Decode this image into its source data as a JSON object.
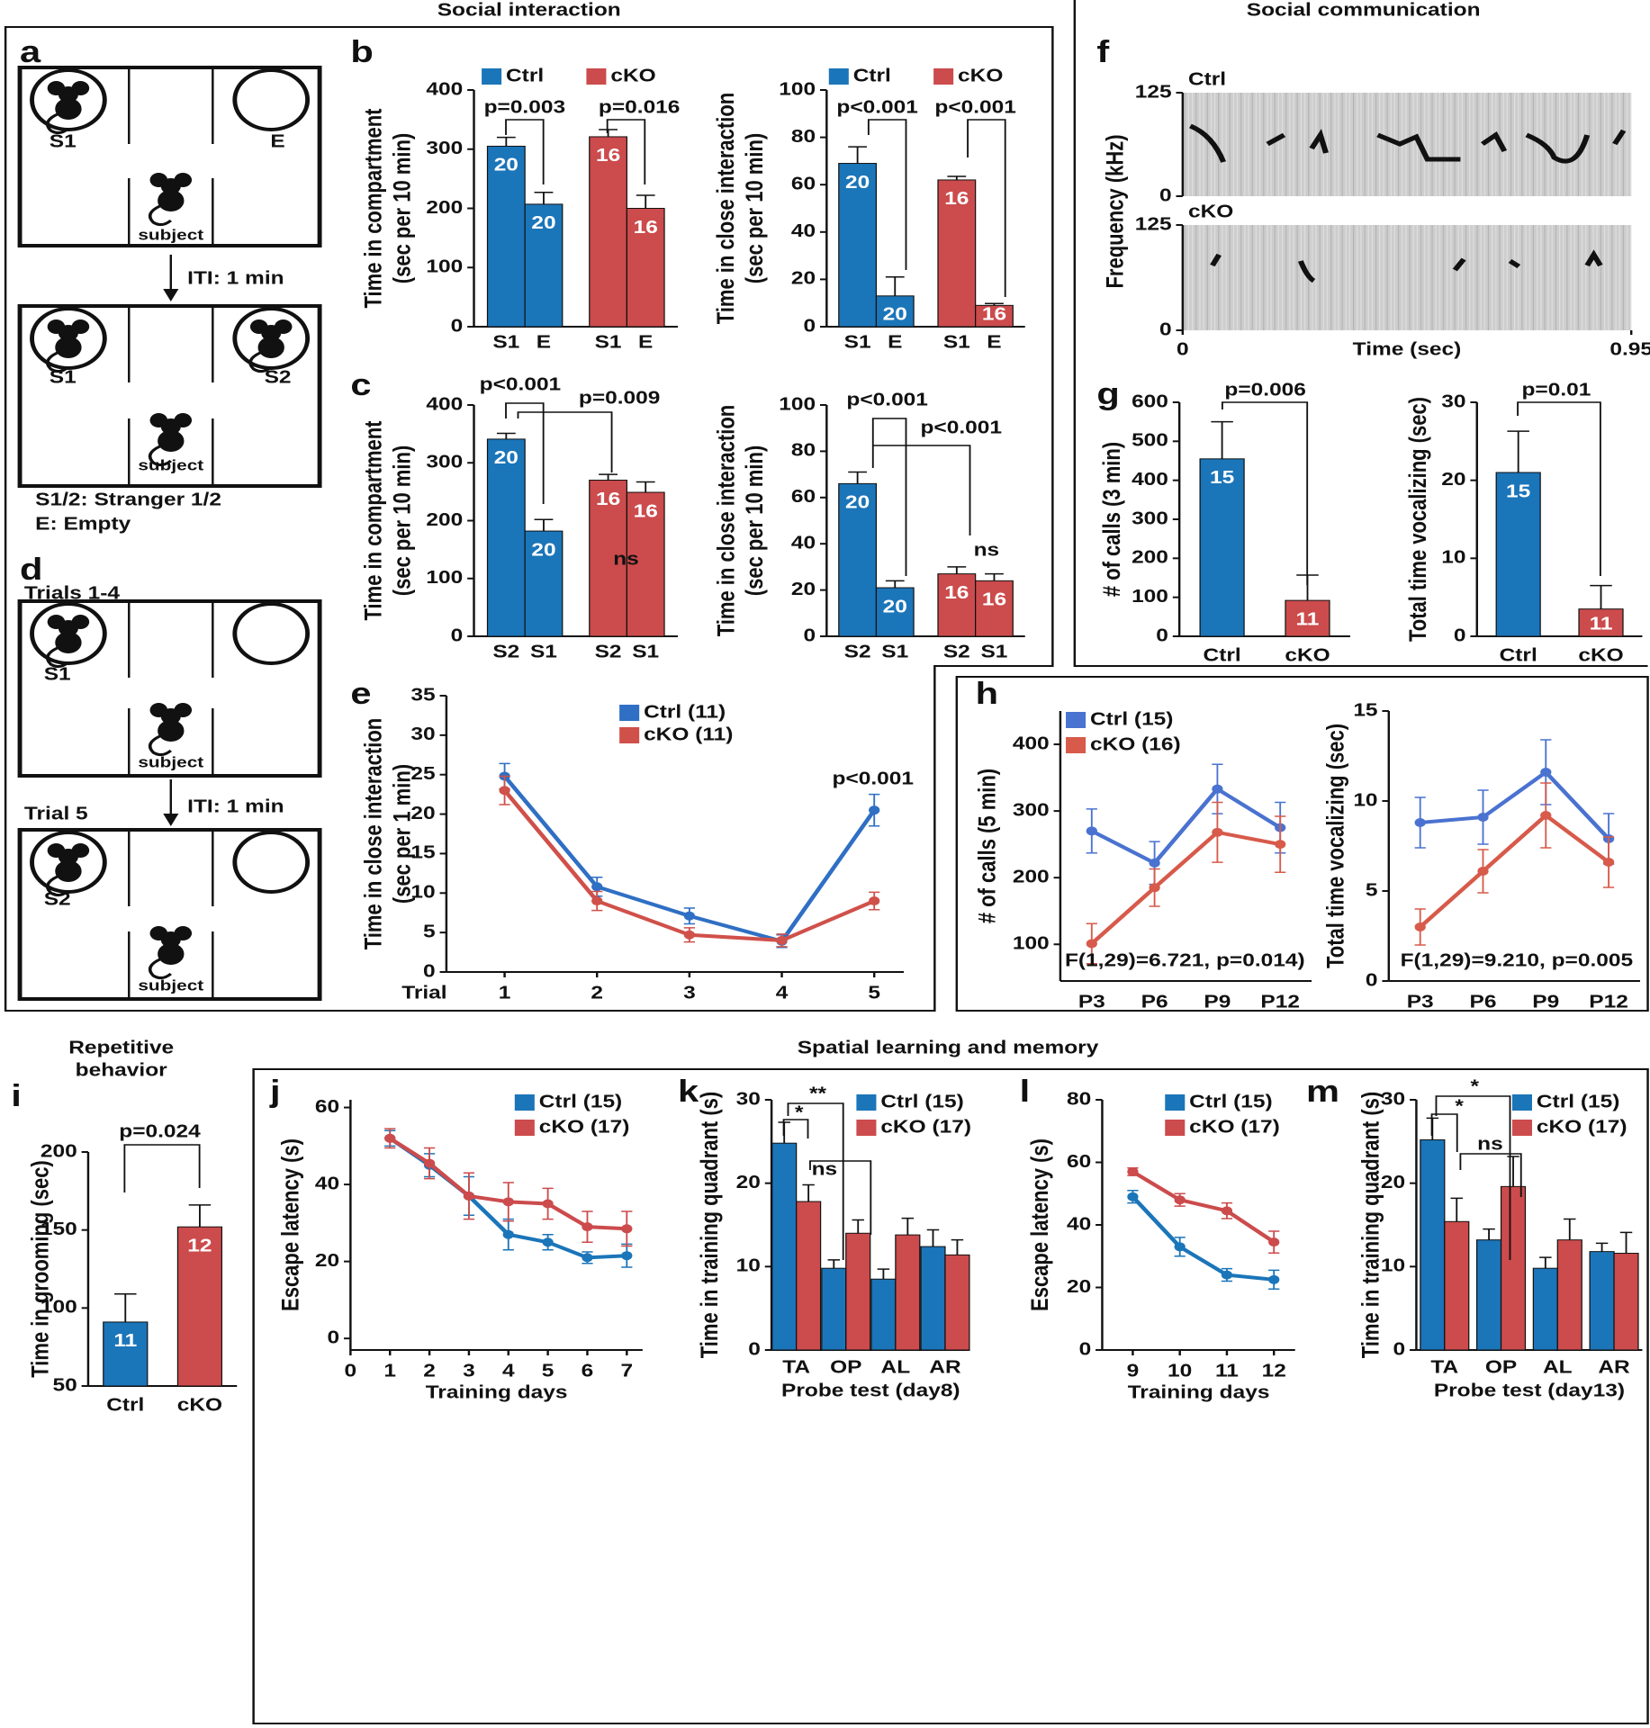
{
  "sections": [
    "Social interaction",
    "Social communication",
    [
      "Repetitive",
      "behavior"
    ],
    "Spatial learning and memory"
  ],
  "panel_labels": [
    "a",
    "b",
    "c",
    "d",
    "e",
    "f",
    "g",
    "h",
    "i",
    "j",
    "k",
    "l",
    "m"
  ],
  "diagram_a": {
    "top": [
      "S1",
      "E",
      "subject"
    ],
    "iti": "ITI: 1 min",
    "bottom": [
      "S1",
      "S2",
      "subject"
    ],
    "legend": [
      "S1/2: Stranger 1/2",
      "E: Empty"
    ]
  },
  "diagram_d": {
    "top_title": "Trials 1-4",
    "top": [
      "S1",
      "subject"
    ],
    "iti": "ITI: 1 min",
    "bottom_title": "Trial 5",
    "bottom": [
      "S2",
      "subject"
    ]
  },
  "chart_data": [
    {
      "type": "bar",
      "categories": [
        "S1",
        "E"
      ],
      "ylim": [
        0,
        400
      ],
      "yticks": [
        0,
        100,
        200,
        300,
        400
      ],
      "ylabel": [
        "Time in compartment",
        "(sec per 10 min)"
      ],
      "series": [
        {
          "name": "Ctrl",
          "color": "#1b75b9",
          "values": [
            305,
            207
          ],
          "errors": [
            15,
            20
          ],
          "n": [
            20,
            20
          ]
        },
        {
          "name": "cKO",
          "color": "#cc4b4c",
          "values": [
            321,
            200
          ],
          "errors": [
            12,
            22
          ],
          "n": [
            16,
            16
          ]
        }
      ],
      "annotations": [
        "p=0.003",
        "p=0.016"
      ]
    },
    {
      "type": "bar",
      "categories": [
        "S1",
        "E"
      ],
      "ylim": [
        0,
        100
      ],
      "yticks": [
        0,
        20,
        40,
        60,
        80,
        100
      ],
      "ylabel": [
        "Time in close interaction",
        "(sec per 10 min)"
      ],
      "series": [
        {
          "name": "Ctrl",
          "color": "#1b75b9",
          "values": [
            69,
            13
          ],
          "errors": [
            7,
            8
          ],
          "n": [
            20,
            20
          ]
        },
        {
          "name": "cKO",
          "color": "#cc4b4c",
          "values": [
            62,
            9
          ],
          "errors": [
            1.5,
            0.8
          ],
          "n": [
            16,
            16
          ]
        }
      ],
      "annotations": [
        "p<0.001",
        "p<0.001"
      ]
    },
    {
      "type": "bar",
      "categories": [
        "S2",
        "S1"
      ],
      "ylim": [
        0,
        400
      ],
      "yticks": [
        0,
        100,
        200,
        300,
        400
      ],
      "ylabel": [
        "Time in compartment",
        "(sec per 10 min)"
      ],
      "series": [
        {
          "color": "#1b75b9",
          "values": [
            341,
            182
          ],
          "errors": [
            10,
            20
          ],
          "n": [
            20,
            20
          ]
        },
        {
          "color": "#cc4b4c",
          "values": [
            270,
            249
          ],
          "errors": [
            10,
            18
          ],
          "n": [
            16,
            16
          ]
        }
      ],
      "annotations": [
        "p<0.001",
        "p=0.009",
        "ns"
      ]
    },
    {
      "type": "bar",
      "categories": [
        "S2",
        "S1"
      ],
      "ylim": [
        0,
        100
      ],
      "yticks": [
        0,
        20,
        40,
        60,
        80,
        100
      ],
      "ylabel": [
        "Time in close interaction",
        "(sec per 10 min)"
      ],
      "series": [
        {
          "color": "#1b75b9",
          "values": [
            66,
            21
          ],
          "errors": [
            5,
            3
          ],
          "n": [
            20,
            20
          ]
        },
        {
          "color": "#cc4b4c",
          "values": [
            27,
            24
          ],
          "errors": [
            3,
            3
          ],
          "n": [
            16,
            16
          ]
        }
      ],
      "annotations": [
        "p<0.001",
        "p<0.001",
        "ns"
      ]
    },
    {
      "type": "line",
      "x": [
        1,
        2,
        3,
        4,
        5
      ],
      "xlim": [
        0.37,
        5.32
      ],
      "xticks": [
        1,
        2,
        3,
        4,
        5
      ],
      "xlabel": "Trial",
      "ylim": [
        0,
        35
      ],
      "yticks": [
        0,
        5,
        10,
        15,
        20,
        25,
        30,
        35
      ],
      "ylabel": [
        "Time in close interaction",
        "(sec per 1 min)"
      ],
      "series": [
        {
          "name": "Ctrl (11)",
          "color": "#2f6fc4",
          "values": [
            24.8,
            10.8,
            7.1,
            3.9,
            20.5
          ],
          "errors": [
            1.6,
            1.2,
            1,
            0.8,
            2
          ]
        },
        {
          "name": "cKO (11)",
          "color": "#d0504a",
          "values": [
            23,
            9,
            4.7,
            4,
            9
          ],
          "errors": [
            1.8,
            1.2,
            0.9,
            0.8,
            1.1
          ]
        }
      ],
      "annotations": [
        "p<0.001"
      ]
    },
    {
      "type": "spectrogram",
      "panels": [
        "Ctrl",
        "cKO"
      ],
      "ylabel": "Frequency (kHz)",
      "xlabel": "Time (sec)",
      "ylim": [
        0,
        125
      ],
      "yticks": [
        0,
        125
      ],
      "xlim": [
        0,
        0.95
      ],
      "xticks": [
        0,
        0.95
      ]
    },
    {
      "type": "bar",
      "categories": [
        "Ctrl",
        "cKO"
      ],
      "colors": [
        "#1b75b9",
        "#cc4b4c"
      ],
      "values": [
        455,
        92
      ],
      "errors": [
        95,
        65
      ],
      "n": [
        15,
        11
      ],
      "ylim": [
        0,
        600
      ],
      "yticks": [
        0,
        100,
        200,
        300,
        400,
        500,
        600
      ],
      "ylabel": "# of calls (3 min)",
      "annotations": [
        "p=0.006"
      ]
    },
    {
      "type": "bar",
      "categories": [
        "Ctrl",
        "cKO"
      ],
      "colors": [
        "#1b75b9",
        "#cc4b4c"
      ],
      "values": [
        21,
        3.5
      ],
      "errors": [
        5.3,
        3
      ],
      "n": [
        15,
        11
      ],
      "ylim": [
        0,
        30
      ],
      "yticks": [
        0,
        10,
        20,
        30
      ],
      "ylabel": "Total time vocalizing (sec)",
      "annotations": [
        "p=0.01"
      ]
    },
    {
      "type": "line",
      "categories": [
        "P3",
        "P6",
        "P9",
        "P12"
      ],
      "ylim": [
        45,
        450
      ],
      "yticks": [
        100,
        200,
        300,
        400
      ],
      "ylabel": "# of calls (5 min)",
      "series": [
        {
          "name": "Ctrl (15)",
          "color": "#4a72d0",
          "values": [
            270,
            222,
            333,
            275
          ],
          "errors": [
            33,
            32,
            37,
            38
          ]
        },
        {
          "name": "cKO (16)",
          "color": "#d75a4a",
          "values": [
            101,
            185,
            268,
            250
          ],
          "errors": [
            30,
            28,
            45,
            42
          ]
        }
      ],
      "annotations": [
        "F(1,29)=6.721, p=0.014)"
      ]
    },
    {
      "type": "line",
      "categories": [
        "P3",
        "P6",
        "P9",
        "P12"
      ],
      "ylim": [
        0,
        15
      ],
      "yticks": [
        0,
        5,
        10,
        15
      ],
      "ylabel": "Total time vocalizing (sec)",
      "series": [
        {
          "color": "#4a72d0",
          "values": [
            8.8,
            9.1,
            11.6,
            7.9
          ],
          "errors": [
            1.4,
            1.5,
            1.8,
            1.4
          ]
        },
        {
          "color": "#d75a4a",
          "values": [
            3,
            6.1,
            9.2,
            6.6
          ],
          "errors": [
            1,
            1.2,
            1.8,
            1.4
          ]
        }
      ],
      "annotations": [
        "F(1,29)=9.210, p=0.005"
      ]
    },
    {
      "type": "bar",
      "categories": [
        "Ctrl",
        "cKO"
      ],
      "colors": [
        "#1b75b9",
        "#cc4b4c"
      ],
      "values": [
        91,
        152
      ],
      "errors": [
        18,
        14
      ],
      "n": [
        11,
        12
      ],
      "ylim": [
        50,
        200
      ],
      "yticks": [
        50,
        100,
        150,
        200
      ],
      "ylabel": "Time in grooming (sec)",
      "annotations": [
        "p=0.024"
      ]
    },
    {
      "type": "line",
      "x": [
        1,
        2,
        3,
        4,
        5,
        6,
        7
      ],
      "xlim": [
        0,
        7.4
      ],
      "xticks": [
        0,
        1,
        2,
        3,
        4,
        5,
        6,
        7
      ],
      "xlabel": "Training days",
      "ylim": [
        -3,
        62
      ],
      "yticks": [
        0,
        20,
        40,
        60
      ],
      "ylabel": "Escape latency (s)",
      "series": [
        {
          "name": "Ctrl (15)",
          "color": "#1b75b9",
          "values": [
            52,
            45,
            37,
            27,
            25,
            21,
            21.5
          ],
          "errors": [
            2,
            3,
            5,
            4,
            2,
            1.5,
            3
          ]
        },
        {
          "name": "cKO (17)",
          "color": "#cc4b4c",
          "values": [
            52,
            45.5,
            37,
            35.5,
            35,
            29,
            28.5
          ],
          "errors": [
            2.5,
            4,
            6,
            5,
            4,
            4,
            4.5
          ]
        }
      ]
    },
    {
      "type": "bar",
      "categories": [
        "TA",
        "OP",
        "AL",
        "AR"
      ],
      "xlabel": "Probe test (day8)",
      "ylim": [
        0,
        30
      ],
      "yticks": [
        0,
        10,
        20,
        30
      ],
      "ylabel": "Time in training quadrant (s)",
      "series": [
        {
          "name": "Ctrl (15)",
          "color": "#1b75b9",
          "values": [
            24.8,
            9.8,
            8.5,
            12.4
          ],
          "errors": [
            2.5,
            1,
            1.2,
            2
          ]
        },
        {
          "name": "cKO (17)",
          "color": "#cc4b4c",
          "values": [
            17.8,
            14,
            13.8,
            11.4
          ],
          "errors": [
            2,
            1.6,
            2,
            1.8
          ]
        }
      ],
      "annotations": [
        "*",
        "**",
        "ns"
      ]
    },
    {
      "type": "line",
      "x": [
        9,
        10,
        11,
        12
      ],
      "xlim": [
        8.35,
        12.45
      ],
      "xticks": [
        9,
        10,
        11,
        12
      ],
      "xlabel": "Training days",
      "ylim": [
        0,
        80
      ],
      "yticks": [
        0,
        20,
        40,
        60,
        80
      ],
      "ylabel": "Escape latency (s)",
      "series": [
        {
          "name": "Ctrl (15)",
          "color": "#1b75b9",
          "values": [
            49,
            33,
            24,
            22.5
          ],
          "errors": [
            2,
            3,
            2,
            3
          ]
        },
        {
          "name": "cKO (17)",
          "color": "#cc4b4c",
          "values": [
            57,
            48,
            44.5,
            34.5
          ],
          "errors": [
            1.2,
            2,
            2.5,
            3.5
          ]
        }
      ]
    },
    {
      "type": "bar",
      "categories": [
        "TA",
        "OP",
        "AL",
        "AR"
      ],
      "xlabel": "Probe test (day13)",
      "ylim": [
        0,
        30
      ],
      "yticks": [
        0,
        10,
        20,
        30
      ],
      "ylabel": "Time in training quadrant (s)",
      "series": [
        {
          "name": "Ctrl (15)",
          "color": "#1b75b9",
          "values": [
            25.2,
            13.2,
            9.8,
            11.8
          ],
          "errors": [
            2.6,
            1.3,
            1.3,
            1
          ]
        },
        {
          "name": "cKO (17)",
          "color": "#cc4b4c",
          "values": [
            15.4,
            19.6,
            13.2,
            11.6
          ],
          "errors": [
            2.8,
            3.6,
            2.5,
            2.5
          ]
        }
      ],
      "annotations": [
        "*",
        "*",
        "ns"
      ]
    }
  ]
}
